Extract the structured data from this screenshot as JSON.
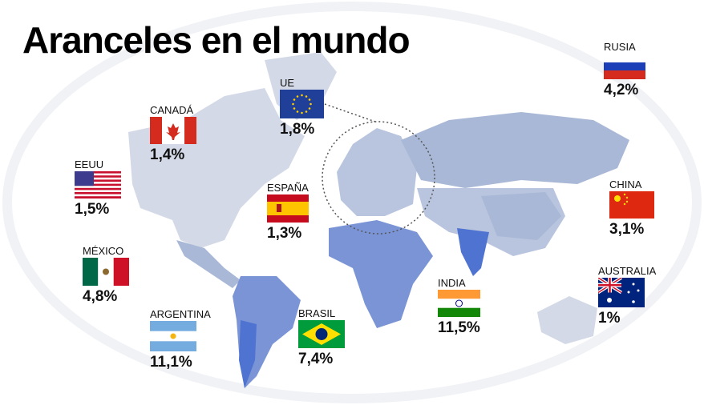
{
  "title": "Aranceles en el mundo",
  "colors": {
    "land_light": "#d3d9e6",
    "land_mid": "#a9b8d6",
    "land_high": "#4f73d1",
    "circle": "#555555"
  },
  "countries": [
    {
      "id": "rusia",
      "label": "RUSIA",
      "value": "4,2%",
      "flag": "russia-flag"
    },
    {
      "id": "ue",
      "label": "UE",
      "value": "1,8%",
      "flag": "eu-flag"
    },
    {
      "id": "canada",
      "label": "CANADÁ",
      "value": "1,4%",
      "flag": "canada-flag"
    },
    {
      "id": "eeuu",
      "label": "EEUU",
      "value": "1,5%",
      "flag": "usa-flag"
    },
    {
      "id": "espana",
      "label": "ESPAÑA",
      "value": "1,3%",
      "flag": "spain-flag"
    },
    {
      "id": "china",
      "label": "CHINA",
      "value": "3,1%",
      "flag": "china-flag"
    },
    {
      "id": "mexico",
      "label": "MÉXICO",
      "value": "4,8%",
      "flag": "mexico-flag"
    },
    {
      "id": "australia",
      "label": "AUSTRALIA",
      "value": "1%",
      "flag": "australia-flag"
    },
    {
      "id": "india",
      "label": "INDIA",
      "value": "11,5%",
      "flag": "india-flag"
    },
    {
      "id": "argentina",
      "label": "ARGENTINA",
      "value": "11,1%",
      "flag": "argentina-flag"
    },
    {
      "id": "brasil",
      "label": "BRASIL",
      "value": "7,4%",
      "flag": "brazil-flag"
    }
  ]
}
